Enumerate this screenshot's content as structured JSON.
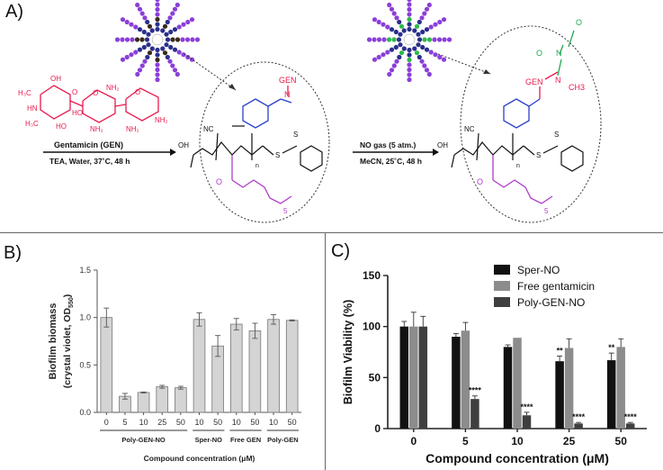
{
  "panel_a": {
    "label": "A)",
    "gentamicin_caption": "Gentamicin (GEN)",
    "step1_conditions": "TEA, Water, 37˚C, 48 h",
    "step2_above": "NO gas (5 atm.)",
    "step2_below": "MeCN, 25˚C, 48 h",
    "gen_label": "GEN",
    "gen_label2": "GEN",
    "nc_label": "NC",
    "nc_label2": "NC",
    "n_label": "N",
    "n_label2": "N",
    "n_label3": "N",
    "ch3_label": "CH3",
    "sub_n": "n",
    "sub_n2": "n",
    "sub_5": "5",
    "sub_5b": "5",
    "s_label": "S",
    "s_label2": "S",
    "s_label3": "S",
    "s_label4": "S",
    "oh_label": "OH",
    "oh_label2": "OH",
    "o_label": "O",
    "o_label2": "O",
    "o_minus": "O",
    "o_minus2": "O",
    "sugar_oh": "OH",
    "sugar_ho": "HO",
    "sugar_h3c": "H₃C",
    "sugar_hn": "HN",
    "sugar_h3c2": "H₃C",
    "sugar_nh2": "NH₂",
    "sugar_nh2b": "NH₂",
    "sugar_nh2c": "NH₂",
    "sugar_o": "O",
    "sugar_o2": "O",
    "sugar_ho2": "HO",
    "sugar_nh2d": "NH₂",
    "sugar_o3": "O"
  },
  "panel_b": {
    "label": "B)",
    "chart_data": {
      "type": "bar",
      "ylabel_line1": "Biofilm biomass",
      "ylabel_line2": "(crystal violet, OD",
      "ylabel_sub": "550",
      "ylabel_close": ")",
      "xlabel": "Compound concentration (μM)",
      "ylim": [
        0,
        1.5
      ],
      "yticks": [
        "0.0",
        "0.5",
        "1.0",
        "1.5"
      ],
      "ytick_values": [
        0,
        0.5,
        1.0,
        1.5
      ],
      "categories": [
        "0",
        "5",
        "10",
        "25",
        "50",
        "10",
        "50",
        "10",
        "50",
        "10",
        "50"
      ],
      "values": [
        1.0,
        0.17,
        0.21,
        0.27,
        0.26,
        0.98,
        0.7,
        0.93,
        0.86,
        0.98,
        0.97
      ],
      "errors": [
        0.1,
        0.03,
        0.005,
        0.015,
        0.015,
        0.07,
        0.11,
        0.06,
        0.08,
        0.05,
        0.005
      ],
      "groups": [
        {
          "name": "Poly-GEN-NO",
          "start": 0,
          "end": 4
        },
        {
          "name": "Sper-NO",
          "start": 5,
          "end": 6
        },
        {
          "name": "Free GEN",
          "start": 7,
          "end": 8
        },
        {
          "name": "Poly-GEN",
          "start": 9,
          "end": 10
        }
      ],
      "bar_color": "#d4d4d4",
      "grid": false
    }
  },
  "panel_c": {
    "label": "C)",
    "chart_data": {
      "type": "bar",
      "ylabel": "Biofilm Viability (%)",
      "xlabel": "Compound concentration (μM)",
      "ylim": [
        0,
        150
      ],
      "yticks": [
        "0",
        "50",
        "100",
        "150"
      ],
      "ytick_values": [
        0,
        50,
        100,
        150
      ],
      "categories": [
        "0",
        "5",
        "10",
        "25",
        "50"
      ],
      "legend_position": "top-right",
      "series": [
        {
          "name": "Sper-NO",
          "color": "#111111",
          "values": [
            100,
            90,
            80,
            66,
            67
          ],
          "errors": [
            5,
            3,
            2,
            5,
            7
          ],
          "sig": [
            "",
            "",
            "",
            "**",
            "**"
          ]
        },
        {
          "name": "Free gentamicin",
          "color": "#8c8c8c",
          "values": [
            100,
            96,
            89,
            79,
            80
          ],
          "errors": [
            14,
            8,
            0,
            9,
            8
          ],
          "sig": [
            "",
            "",
            "",
            "",
            ""
          ]
        },
        {
          "name": "Poly-GEN-NO",
          "color": "#3f3f3f",
          "values": [
            100,
            29,
            13,
            5,
            5
          ],
          "errors": [
            10,
            3,
            3,
            1,
            1
          ],
          "sig": [
            "",
            "****",
            "****",
            "****",
            "****"
          ]
        }
      ],
      "grid": false
    }
  }
}
